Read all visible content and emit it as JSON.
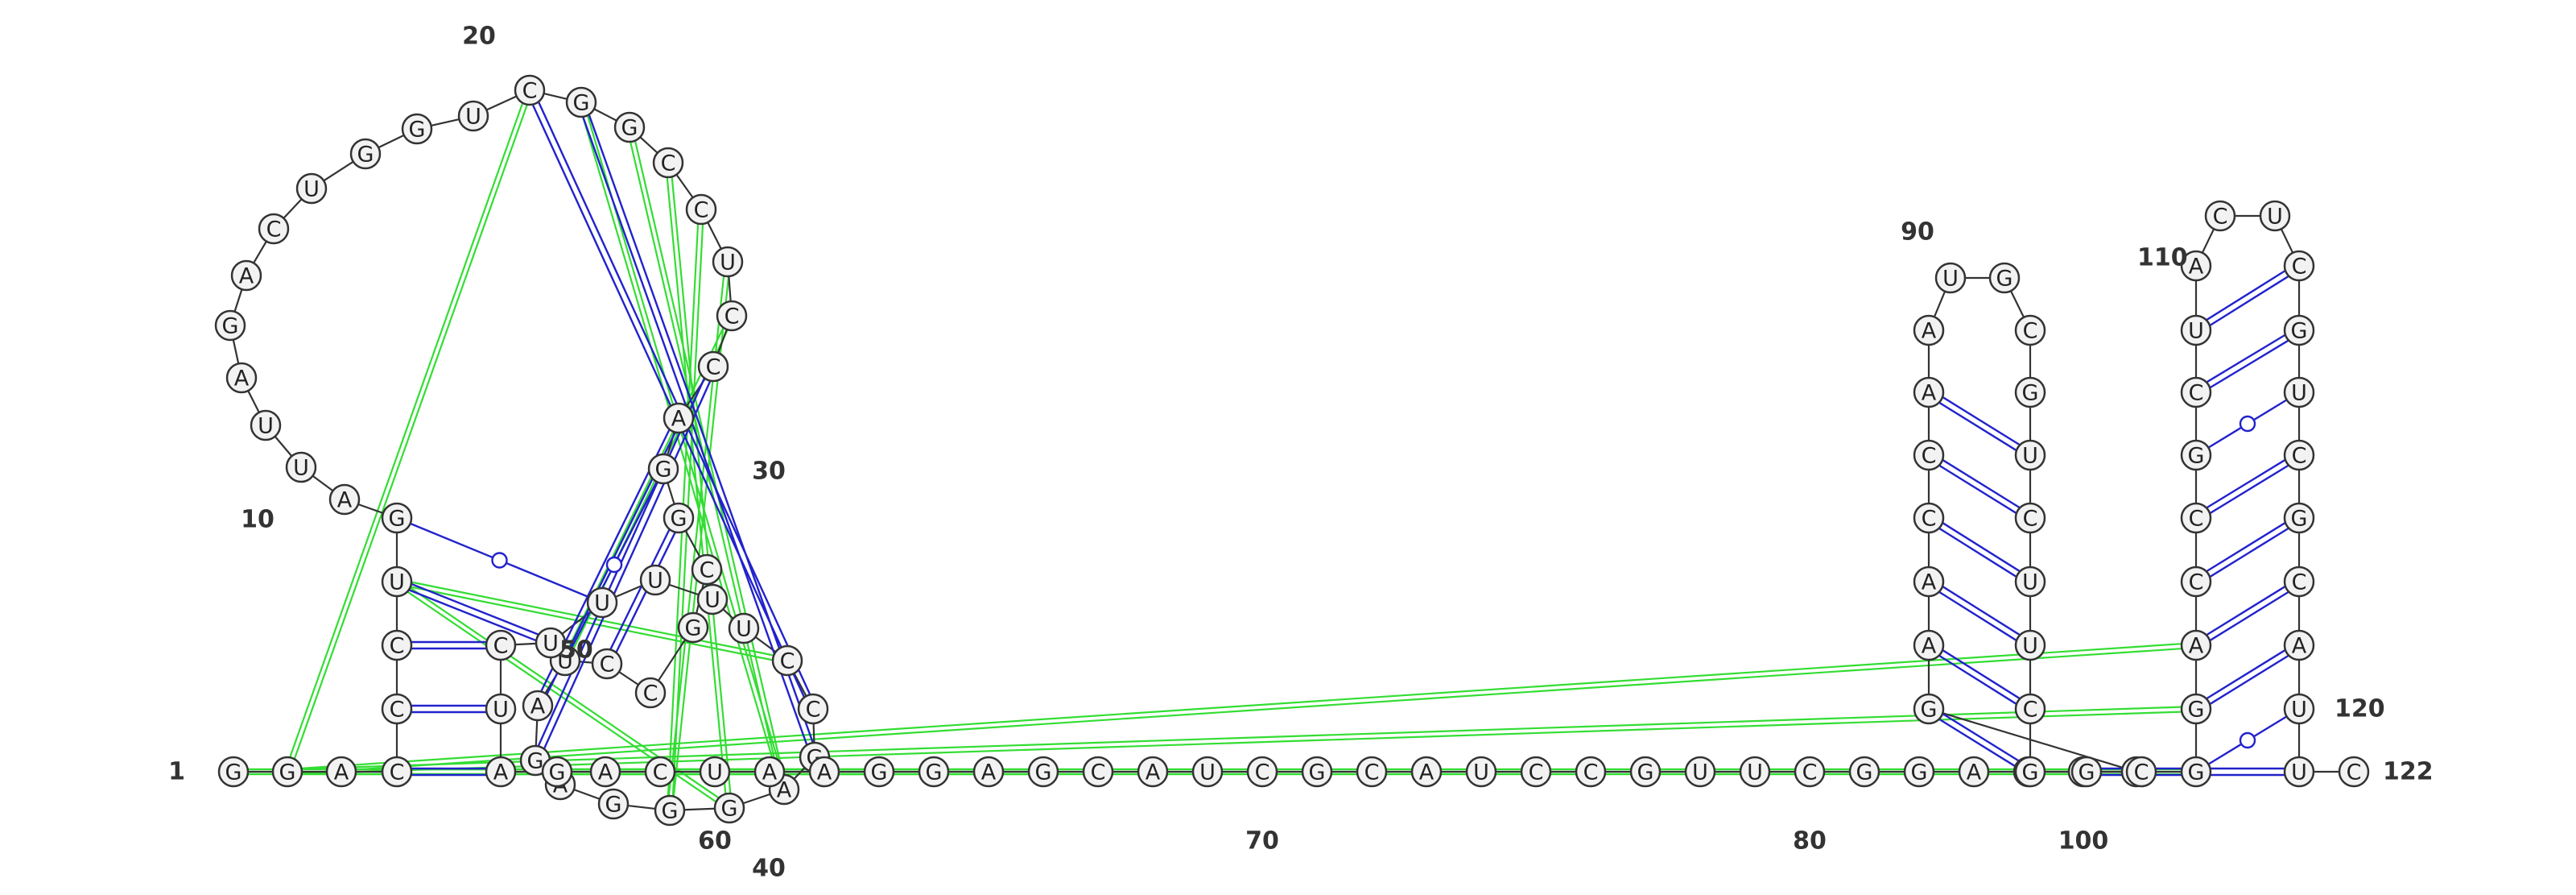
{
  "sequence": "GGACCCUGAUUAGACUGGUCGGCCUCCAGGCGCCUAGAGGGAGCCUUUUUCUAGACUAAGGAGCAUCGCAUCCGUUCGGACGCGAACCAAUGCGUCUUCGGCGGACCGCUACUCGUCGCAUUC",
  "position_labels": [
    {
      "id": "p1",
      "text": "1"
    },
    {
      "id": "p10",
      "text": "10"
    },
    {
      "id": "p20",
      "text": "20"
    },
    {
      "id": "p30",
      "text": "30"
    },
    {
      "id": "p40",
      "text": "40"
    },
    {
      "id": "p50",
      "text": "50"
    },
    {
      "id": "p60",
      "text": "60"
    },
    {
      "id": "p70",
      "text": "70"
    },
    {
      "id": "p80",
      "text": "80"
    },
    {
      "id": "p90",
      "text": "90"
    },
    {
      "id": "p100",
      "text": "100"
    },
    {
      "id": "p110",
      "text": "110"
    },
    {
      "id": "p120",
      "text": "120"
    },
    {
      "id": "p122",
      "text": "122"
    }
  ],
  "colors": {
    "canonical_pair": "#2222cc",
    "noncanonical_pair": "#33dd33",
    "backbone": "#333333",
    "nucleotide_fill": "#f2f2f2"
  },
  "wobble_pairs_marked": [
    "UG"
  ]
}
